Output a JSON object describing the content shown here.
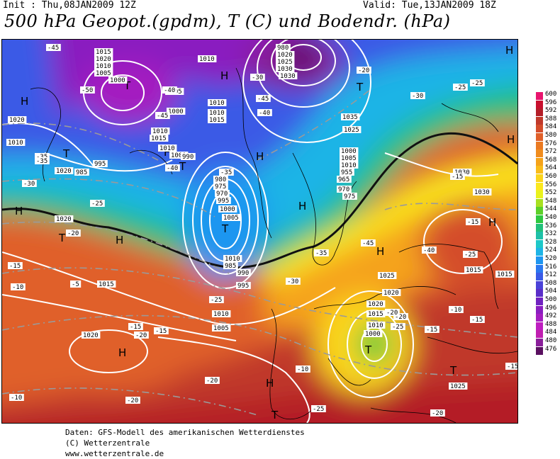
{
  "header": {
    "init": "Init : Thu,08JAN2009 12Z",
    "valid": "Valid: Tue,13JAN2009 18Z",
    "title": "500 hPa Geopot.(gpdm), T (C) und Bodendr. (hPa)"
  },
  "legend": {
    "levels": [
      {
        "value": "600",
        "color": "#e8156e"
      },
      {
        "value": "596",
        "color": "#c8102e"
      },
      {
        "value": "592",
        "color": "#b41e28"
      },
      {
        "value": "588",
        "color": "#c0392b"
      },
      {
        "value": "584",
        "color": "#d44d2b"
      },
      {
        "value": "580",
        "color": "#e0602a"
      },
      {
        "value": "576",
        "color": "#ea7a22"
      },
      {
        "value": "572",
        "color": "#f08c1e"
      },
      {
        "value": "568",
        "color": "#f5a31a"
      },
      {
        "value": "564",
        "color": "#f9bc1a"
      },
      {
        "value": "560",
        "color": "#fbd51c"
      },
      {
        "value": "556",
        "color": "#fbe81e"
      },
      {
        "value": "552",
        "color": "#e9f21c"
      },
      {
        "value": "548",
        "color": "#a8e020"
      },
      {
        "value": "544",
        "color": "#5cd02a"
      },
      {
        "value": "540",
        "color": "#2ec840"
      },
      {
        "value": "536",
        "color": "#22c07a"
      },
      {
        "value": "532",
        "color": "#1ec0a8"
      },
      {
        "value": "528",
        "color": "#1ec8c8"
      },
      {
        "value": "524",
        "color": "#1eb4e6"
      },
      {
        "value": "520",
        "color": "#1e96f0"
      },
      {
        "value": "516",
        "color": "#2a78f0"
      },
      {
        "value": "512",
        "color": "#3a5ae6"
      },
      {
        "value": "508",
        "color": "#4a42d8"
      },
      {
        "value": "504",
        "color": "#5a2ec8"
      },
      {
        "value": "500",
        "color": "#7022c0"
      },
      {
        "value": "496",
        "color": "#8a1ec0"
      },
      {
        "value": "492",
        "color": "#a41ec0"
      },
      {
        "value": "488",
        "color": "#be1ec0"
      },
      {
        "value": "484",
        "color": "#c01eb0"
      },
      {
        "value": "480",
        "color": "#8a1e9a"
      },
      {
        "value": "476",
        "color": "#5a1060"
      }
    ]
  },
  "map_labels": {
    "pressure": [
      "1015",
      "1020",
      "1010",
      "1005",
      "1000",
      "1010",
      "1005",
      "1000",
      "1020",
      "1010",
      "1010",
      "1015",
      "1010",
      "1010",
      "1015",
      "1010",
      "1020",
      "1000",
      "995",
      "990",
      "985",
      "980",
      "975",
      "970",
      "995",
      "1000",
      "1005",
      "1010",
      "985",
      "990",
      "995",
      "1000",
      "1005",
      "1010",
      "955",
      "965",
      "970",
      "975",
      "980",
      "1020",
      "1025",
      "1030",
      "1030",
      "1035",
      "1025",
      "1020",
      "1015",
      "1010",
      "1005",
      "1020",
      "1025",
      "1030",
      "1030",
      "1015",
      "1015",
      "1020",
      "1020",
      "1025",
      "1015",
      "1010",
      "1000"
    ],
    "temperature": [
      "-45",
      "-50",
      "-45",
      "-40",
      "-45",
      "-40",
      "-35",
      "-30",
      "-35",
      "-25",
      "-20",
      "-15",
      "-10",
      "-5",
      "-15",
      "-15",
      "-20",
      "-25",
      "-30",
      "-35",
      "-45",
      "-40",
      "-25",
      "-20",
      "-25",
      "-15",
      "-10",
      "-15",
      "-20",
      "-10",
      "-20",
      "-25",
      "-20",
      "-15",
      "-10",
      "-20",
      "-15",
      "-15",
      "-20",
      "-30",
      "-25",
      "-25",
      "-35",
      "-30",
      "-40"
    ],
    "highs_lows": [
      "H",
      "H",
      "H",
      "H",
      "H",
      "H",
      "H",
      "H",
      "H",
      "H",
      "H",
      "H",
      "H",
      "H",
      "T",
      "T",
      "T",
      "T",
      "T",
      "T",
      "T",
      "T",
      "T"
    ]
  },
  "footer": {
    "line1": "Daten: GFS-Modell des amerikanischen Wetterdienstes",
    "line2": "(C) Wetterzentrale",
    "line3": "www.wetterzentrale.de"
  }
}
